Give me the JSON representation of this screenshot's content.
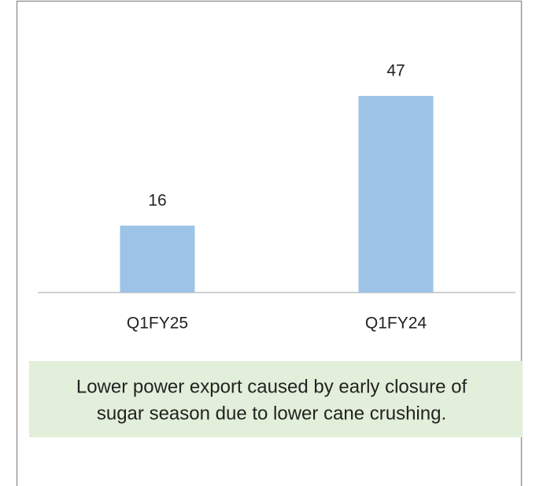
{
  "chart_data": {
    "type": "bar",
    "categories": [
      "Q1FY25",
      "Q1FY24"
    ],
    "values": [
      16,
      47
    ],
    "color": "#9dc3e6",
    "annotation": [
      "Lower power export caused by early closure of",
      "sugar season due to lower cane crushing."
    ]
  }
}
